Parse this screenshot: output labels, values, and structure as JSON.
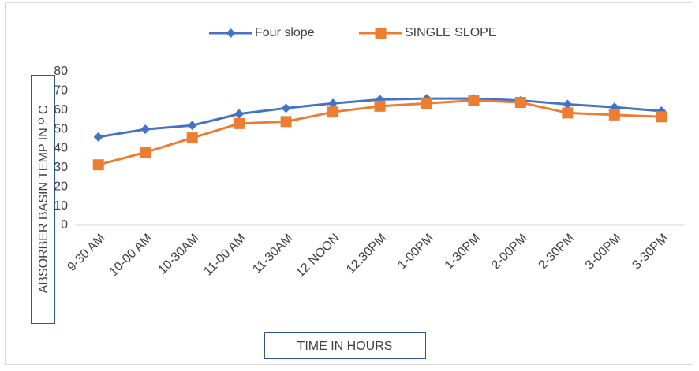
{
  "chart_data": {
    "type": "line",
    "x_label": "TIME IN HOURS",
    "y_label": "ABSORBER BASIN TEMP IN ᴼ C",
    "categories": [
      "9-30 AM",
      "10-00 AM",
      "10-30AM",
      "11-00 AM",
      "11-30AM",
      "12 NOON",
      "12.30PM",
      "1-00PM",
      "1-30PM",
      "2-00PM",
      "2-30PM",
      "3-00PM",
      "3-30PM"
    ],
    "series": [
      {
        "name": "Four slope",
        "color": "#4472c4",
        "marker": "diamond",
        "values": [
          46,
          50,
          52,
          58,
          61,
          63.5,
          65.5,
          66,
          66,
          65,
          63,
          61.5,
          59.5
        ]
      },
      {
        "name": "SINGLE SLOPE",
        "color": "#ed7d31",
        "marker": "square",
        "values": [
          31.5,
          38,
          45.5,
          53,
          54,
          59,
          62,
          63.5,
          65,
          64,
          58.5,
          57.5,
          56.5
        ]
      }
    ],
    "ylim": [
      0,
      80
    ],
    "yticks": [
      0,
      10,
      20,
      30,
      40,
      50,
      60,
      70,
      80
    ],
    "grid": false,
    "legend": "top"
  }
}
